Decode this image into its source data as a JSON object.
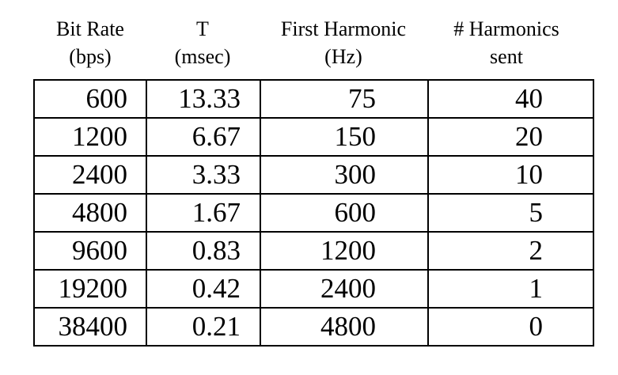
{
  "table": {
    "headers": [
      [
        "Bit Rate",
        "(bps)"
      ],
      [
        "T",
        "(msec)"
      ],
      [
        "First Harmonic",
        "(Hz)"
      ],
      [
        "# Harmonics",
        "sent"
      ]
    ],
    "rows": [
      [
        "600",
        "13.33",
        "75",
        "40"
      ],
      [
        "1200",
        "6.67",
        "150",
        "20"
      ],
      [
        "2400",
        "3.33",
        "300",
        "10"
      ],
      [
        "4800",
        "1.67",
        "600",
        "5"
      ],
      [
        "9600",
        "0.83",
        "1200",
        "2"
      ],
      [
        "19200",
        "0.42",
        "2400",
        "1"
      ],
      [
        "38400",
        "0.21",
        "4800",
        "0"
      ]
    ]
  }
}
